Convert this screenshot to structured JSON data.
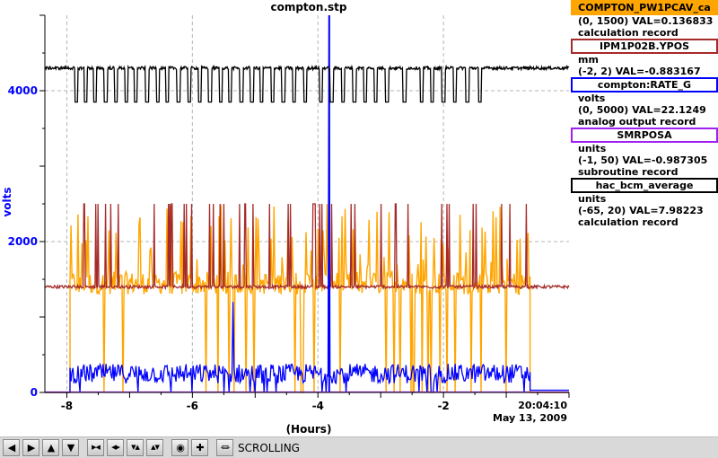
{
  "chart_data": {
    "type": "line",
    "title": "compton.stp",
    "xlabel": "(Hours)",
    "ylabel": "volts",
    "xlim": [
      -8.35,
      0.0
    ],
    "ylim": [
      0,
      5000
    ],
    "x_ticks": [
      "-8",
      "-6",
      "-4",
      "-2"
    ],
    "x_end_time": "20:04:10",
    "x_end_date": "May 13, 2009",
    "y_ticks": [
      "0",
      "2000",
      "4000"
    ],
    "grid": true,
    "legend_position": "right",
    "series": [
      {
        "name": "COMPTON_PW1PCAV_ca",
        "color": "#ffa500",
        "range": "(0, 1500)",
        "value_text": "VAL=0.136833",
        "record": "calculation record",
        "description": "noisy band mostly 1300-1600 with spikes to ~2500 between -8.0 and -0.6 h, near 0 after",
        "values": [
          [
            -8.0,
            0
          ],
          [
            -7.95,
            1400
          ],
          [
            -4.0,
            1450
          ],
          [
            -0.65,
            1400
          ],
          [
            -0.6,
            0
          ],
          [
            0,
            0
          ]
        ]
      },
      {
        "name": "IPM1P02B.YPOS",
        "color": "#a52a2a",
        "units": "mm",
        "range": "(-2, 2)",
        "value_text": "VAL=-0.883167",
        "record": "",
        "description": "baseline ~1400 volts-equivalent with frequent spikes to ~2500",
        "values": [
          [
            -8.35,
            1400
          ],
          [
            0,
            1400
          ]
        ]
      },
      {
        "name": "compton:RATE_G",
        "color": "#0000ff",
        "units": "volts",
        "range": "(0, 5000)",
        "value_text": "VAL=22.1249",
        "record": "analog output record",
        "description": "noisy 100-400 between -7.95 and -0.6 h, large spike to 5000 at -3.82 h",
        "values": [
          [
            -7.95,
            200
          ],
          [
            -3.82,
            5000
          ],
          [
            -0.6,
            250
          ],
          [
            -0.55,
            30
          ],
          [
            0,
            30
          ]
        ]
      },
      {
        "name": "SMRPOSA",
        "color": "#a020f0",
        "units": "units",
        "range": "(-1, 50)",
        "value_text": "VAL=-0.987305",
        "record": "subroutine record",
        "values": [
          [
            -8.35,
            0
          ],
          [
            0,
            0
          ]
        ]
      },
      {
        "name": "hac_bcm_average",
        "color": "#000000",
        "units": "units",
        "range": "(-65, 20)",
        "value_text": "VAL=7.98223",
        "record": "calculation record",
        "description": "flat near 4300 with periodic dropouts to ~3850",
        "values": [
          [
            -8.35,
            4300
          ],
          [
            0,
            4300
          ]
        ]
      }
    ]
  },
  "legend": [
    {
      "header": "COMPTON_PW1PCAV_ca",
      "color": "#ffa500",
      "lines": [
        "(0, 1500) VAL=0.136833",
        "calculation record"
      ]
    },
    {
      "header": "IPM1P02B.YPOS",
      "color": "#a52a2a",
      "lines": [
        "mm",
        "(-2, 2)  VAL=-0.883167"
      ]
    },
    {
      "header": "compton:RATE_G",
      "color": "#0000ff",
      "lines": [
        "volts",
        "(0, 5000) VAL=22.1249",
        "analog output record"
      ]
    },
    {
      "header": "SMRPOSA",
      "color": "#a020f0",
      "lines": [
        "units",
        "(-1, 50)  VAL=-0.987305",
        "subroutine record"
      ]
    },
    {
      "header": "hac_bcm_average",
      "color": "#000000",
      "lines": [
        "units",
        "(-65, 20) VAL=7.98223",
        "calculation record"
      ]
    }
  ],
  "toolbar": {
    "buttons": [
      {
        "name": "scroll-left-button",
        "icon": "arrow-left-icon",
        "glyph": "◀"
      },
      {
        "name": "scroll-right-button",
        "icon": "arrow-right-icon",
        "glyph": "▶"
      },
      {
        "name": "scroll-up-button",
        "icon": "arrow-up-icon",
        "glyph": "▲"
      },
      {
        "name": "scroll-down-button",
        "icon": "arrow-down-icon",
        "glyph": "▼"
      },
      {
        "name": "zoom-in-x-button",
        "icon": "zoom-in-x-icon",
        "glyph": "▶◀"
      },
      {
        "name": "zoom-out-x-button",
        "icon": "zoom-out-x-icon",
        "glyph": "◀▶"
      },
      {
        "name": "zoom-in-y-button",
        "icon": "zoom-in-y-icon",
        "glyph": "▼▲"
      },
      {
        "name": "zoom-out-y-button",
        "icon": "zoom-out-y-icon",
        "glyph": "▲▼"
      },
      {
        "name": "autoscale-button",
        "icon": "target-icon",
        "glyph": "◉"
      },
      {
        "name": "add-button",
        "icon": "plus-icon",
        "glyph": "✚"
      },
      {
        "name": "mode-button",
        "icon": "scroll-mode-icon",
        "glyph": "⏛"
      }
    ],
    "status": "SCROLLING"
  }
}
